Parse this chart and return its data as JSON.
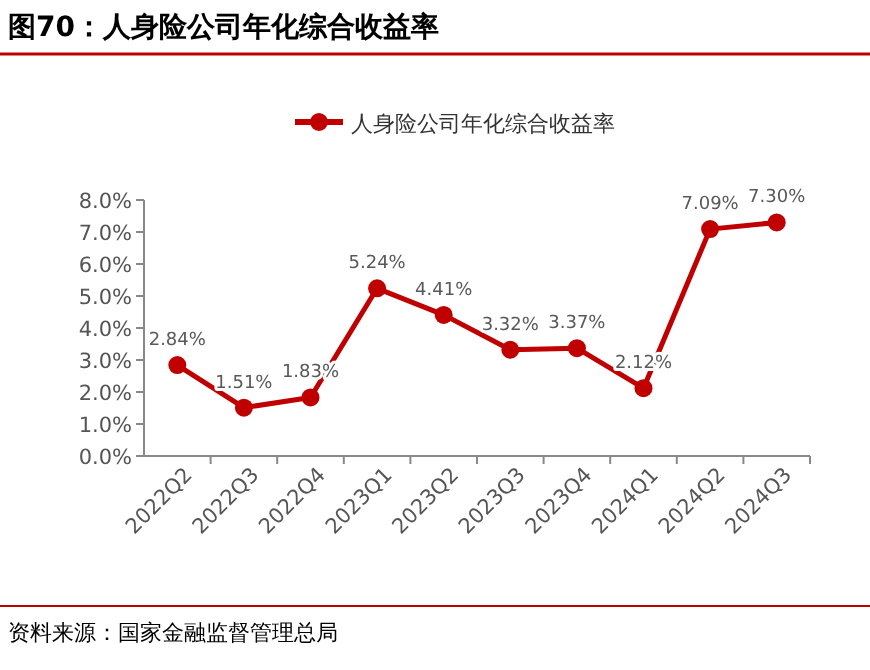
{
  "chart_data": {
    "type": "line",
    "title": "图70：人身险公司年化综合收益率",
    "categories": [
      "2022Q2",
      "2022Q3",
      "2022Q4",
      "2023Q1",
      "2023Q2",
      "2023Q3",
      "2023Q4",
      "2024Q1",
      "2024Q2",
      "2024Q3"
    ],
    "series": [
      {
        "name": "人身险公司年化综合收益率",
        "color": "#c00000",
        "values": [
          2.84,
          1.51,
          1.83,
          5.24,
          4.41,
          3.32,
          3.37,
          2.12,
          7.09,
          7.3
        ],
        "value_labels": [
          "2.84%",
          "1.51%",
          "1.83%",
          "5.24%",
          "4.41%",
          "3.32%",
          "3.37%",
          "2.12%",
          "7.09%",
          "7.30%"
        ]
      }
    ],
    "ylim": [
      0,
      8
    ],
    "yticks": [
      {
        "value": 0,
        "label": "0.0%"
      },
      {
        "value": 1,
        "label": "1.0%"
      },
      {
        "value": 2,
        "label": "2.0%"
      },
      {
        "value": 3,
        "label": "3.0%"
      },
      {
        "value": 4,
        "label": "4.0%"
      },
      {
        "value": 5,
        "label": "5.0%"
      },
      {
        "value": 6,
        "label": "6.0%"
      },
      {
        "value": 7,
        "label": "7.0%"
      },
      {
        "value": 8,
        "label": "8.0%"
      }
    ],
    "legend": "top",
    "marker": "circle",
    "line_style": "solid",
    "annotations": [
      "资料来源：国家金融监督管理总局"
    ]
  }
}
